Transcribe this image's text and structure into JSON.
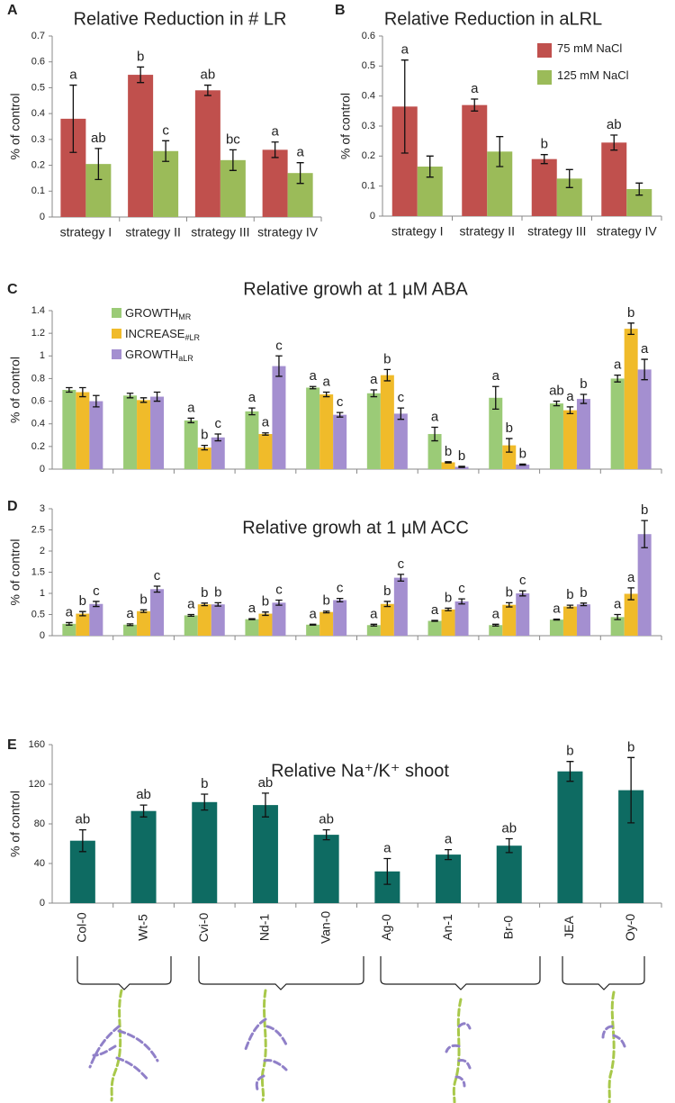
{
  "chart_data": [
    {
      "type": "bar",
      "panel": "A",
      "title": "Relative Reduction in # LR",
      "ylabel": "% of control",
      "categories": [
        "strategy I",
        "strategy II",
        "strategy III",
        "strategy IV"
      ],
      "series": [
        {
          "name": "75 mM NaCl",
          "color": "#c0504d",
          "values": [
            0.38,
            0.55,
            0.49,
            0.26
          ],
          "errors": [
            0.13,
            0.03,
            0.02,
            0.03
          ],
          "letters": [
            "a",
            "b",
            "ab",
            "a"
          ]
        },
        {
          "name": "125 mM NaCl",
          "color": "#9bbb59",
          "values": [
            0.205,
            0.255,
            0.22,
            0.17
          ],
          "errors": [
            0.06,
            0.04,
            0.04,
            0.04
          ],
          "letters": [
            "ab",
            "c",
            "bc",
            "a"
          ]
        }
      ],
      "ylim": [
        0,
        0.7
      ],
      "yticks": [
        0,
        0.1,
        0.2,
        0.3,
        0.4,
        0.5,
        0.6,
        0.7
      ],
      "legend": false
    },
    {
      "type": "bar",
      "panel": "B",
      "title": "Relative Reduction in aLRL",
      "ylabel": "% of control",
      "categories": [
        "strategy I",
        "strategy II",
        "strategy III",
        "strategy IV"
      ],
      "series": [
        {
          "name": "75 mM NaCl",
          "color": "#c0504d",
          "values": [
            0.365,
            0.37,
            0.19,
            0.245
          ],
          "errors": [
            0.155,
            0.02,
            0.015,
            0.025
          ],
          "letters": [
            "a",
            "a",
            "b",
            "ab"
          ]
        },
        {
          "name": "125 mM NaCl",
          "color": "#9bbb59",
          "values": [
            0.165,
            0.215,
            0.125,
            0.09
          ],
          "errors": [
            0.035,
            0.05,
            0.03,
            0.02
          ],
          "letters": [
            null,
            null,
            null,
            null
          ]
        }
      ],
      "ylim": [
        0,
        0.6
      ],
      "yticks": [
        0,
        0.1,
        0.2,
        0.3,
        0.4,
        0.5,
        0.6
      ],
      "legend": "upper right"
    },
    {
      "type": "bar",
      "panel": "C",
      "title": "Relative growh at 1 µM ABA",
      "ylabel": "% of control",
      "categories": [
        null,
        null,
        null,
        null,
        null,
        null,
        null,
        null,
        null,
        null
      ],
      "series": [
        {
          "name": "GROWTH",
          "name_sub": "MR",
          "color": "#9bcb77",
          "values": [
            0.7,
            0.65,
            0.43,
            0.51,
            0.72,
            0.67,
            0.31,
            0.63,
            0.58,
            0.8
          ],
          "errors": [
            0.02,
            0.02,
            0.02,
            0.03,
            0.01,
            0.03,
            0.06,
            0.1,
            0.02,
            0.03
          ],
          "letters": [
            null,
            null,
            "a",
            "a",
            "a",
            "a",
            "a",
            "a",
            "ab",
            "a"
          ]
        },
        {
          "name": "INCREASE",
          "name_sub": "#LR",
          "color": "#f0bb2a",
          "values": [
            0.68,
            0.61,
            0.19,
            0.31,
            0.66,
            0.83,
            0.06,
            0.21,
            0.52,
            1.24
          ],
          "errors": [
            0.04,
            0.02,
            0.02,
            0.01,
            0.02,
            0.05,
            0.005,
            0.06,
            0.03,
            0.05
          ],
          "letters": [
            null,
            null,
            "b",
            "a",
            "a",
            "b",
            "b",
            "b",
            "a",
            "b"
          ]
        },
        {
          "name": "GROWTH",
          "name_sub": "aLR",
          "color": "#a48fd0",
          "values": [
            0.6,
            0.64,
            0.28,
            0.91,
            0.48,
            0.49,
            0.02,
            0.04,
            0.62,
            0.88
          ],
          "errors": [
            0.05,
            0.04,
            0.03,
            0.09,
            0.02,
            0.05,
            0.005,
            0.005,
            0.04,
            0.09
          ],
          "letters": [
            null,
            null,
            "c",
            "c",
            "c",
            "c",
            "b",
            "b",
            "b",
            "a"
          ]
        }
      ],
      "ylim": [
        0,
        1.4
      ],
      "yticks": [
        0,
        0.2,
        0.4,
        0.6,
        0.8,
        1,
        1.2,
        1.4
      ],
      "legend": "upper left"
    },
    {
      "type": "bar",
      "panel": "D",
      "title": "Relative growh at 1 µM ACC",
      "ylabel": "% of control",
      "categories": [
        null,
        null,
        null,
        null,
        null,
        null,
        null,
        null,
        null,
        null
      ],
      "series": [
        {
          "color": "#9bcb77",
          "values": [
            0.28,
            0.26,
            0.48,
            0.39,
            0.26,
            0.25,
            0.35,
            0.25,
            0.38,
            0.44
          ],
          "errors": [
            0.03,
            0.02,
            0.02,
            0.01,
            0.01,
            0.02,
            0.01,
            0.02,
            0.01,
            0.06
          ],
          "letters": [
            "a",
            "a",
            "a",
            "a",
            "a",
            "a",
            "a",
            "a",
            "a",
            "a"
          ]
        },
        {
          "color": "#f0bb2a",
          "values": [
            0.52,
            0.58,
            0.74,
            0.52,
            0.56,
            0.75,
            0.62,
            0.73,
            0.69,
            0.99
          ],
          "errors": [
            0.05,
            0.03,
            0.03,
            0.04,
            0.02,
            0.06,
            0.03,
            0.05,
            0.03,
            0.14
          ],
          "letters": [
            "b",
            "b",
            "b",
            "b",
            "b",
            "b",
            "b",
            "b",
            "b",
            "a"
          ]
        },
        {
          "color": "#a48fd0",
          "values": [
            0.75,
            1.1,
            0.74,
            0.78,
            0.84,
            1.37,
            0.81,
            1.0,
            0.74,
            2.4
          ],
          "errors": [
            0.06,
            0.07,
            0.04,
            0.06,
            0.04,
            0.08,
            0.06,
            0.06,
            0.03,
            0.32
          ],
          "letters": [
            "c",
            "c",
            "b",
            "c",
            "c",
            "c",
            "c",
            "c",
            "b",
            "b"
          ]
        }
      ],
      "ylim": [
        0,
        3
      ],
      "yticks": [
        0,
        0.5,
        1,
        1.5,
        2,
        2.5,
        3
      ],
      "legend": false
    },
    {
      "type": "bar",
      "panel": "E",
      "title": "Relative Na⁺/K⁺ shoot",
      "ylabel": "% of control",
      "categories": [
        "Col-0",
        "Wt-5",
        "Cvi-0",
        "Nd-1",
        "Van-0",
        "Ag-0",
        "An-1",
        "Br-0",
        "JEA",
        "Oy-0"
      ],
      "series": [
        {
          "color": "#0e6b62",
          "values": [
            63,
            93,
            102,
            99,
            69,
            32,
            49,
            58,
            133,
            114
          ],
          "errors": [
            11,
            6,
            8,
            12,
            5,
            13,
            5,
            7,
            10,
            33
          ],
          "letters": [
            "ab",
            "ab",
            "b",
            "ab",
            "ab",
            "a",
            "a",
            "ab",
            "b",
            "b"
          ]
        }
      ],
      "ylim": [
        0,
        160
      ],
      "yticks": [
        0,
        40,
        80,
        120,
        160
      ],
      "legend": false
    }
  ]
}
